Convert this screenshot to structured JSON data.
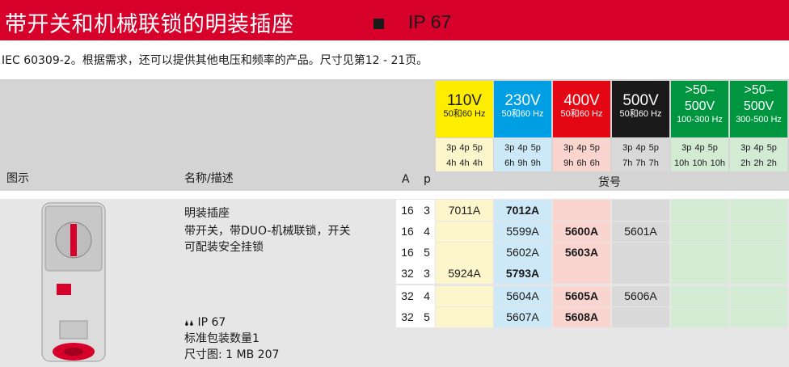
{
  "header": {
    "title": "带开关和机械联锁的明装插座",
    "ip": "IP 67"
  },
  "subtitle": "IEC 60309-2。根据需求，还可以提供其他电压和频率的产品。尺寸见第12 - 21页。",
  "columns": {
    "image": "图示",
    "name": "名称/描述",
    "a": "A",
    "p": "p",
    "order_no": "货号"
  },
  "voltages": [
    {
      "v": "110V",
      "hz": "50和60 Hz",
      "pins": [
        "3p",
        "4p",
        "5p"
      ],
      "hours": [
        "4h",
        "4h",
        "4h"
      ],
      "color": "#ffed00",
      "light": "#fdf6cc",
      "text": "#1a1a1a"
    },
    {
      "v": "230V",
      "hz": "50和60 Hz",
      "pins": [
        "3p",
        "4p",
        "5p"
      ],
      "hours": [
        "6h",
        "9h",
        "9h"
      ],
      "color": "#009fe3",
      "light": "#cde8f7",
      "text": "#ffffff"
    },
    {
      "v": "400V",
      "hz": "50和60 Hz",
      "pins": [
        "3p",
        "4p",
        "5p"
      ],
      "hours": [
        "9h",
        "6h",
        "6h"
      ],
      "color": "#e30613",
      "light": "#fad4cf",
      "text": "#ffffff"
    },
    {
      "v": "500V",
      "hz": "50和60 Hz",
      "pins": [
        "3p",
        "4p",
        "5p"
      ],
      "hours": [
        "7h",
        "7h",
        "7h"
      ],
      "color": "#1a1a1a",
      "light": "#d9d9d9",
      "text": "#ffffff"
    },
    {
      "v": ">50–500V",
      "hz": "100-300 Hz",
      "pins": [
        "3p",
        "4p",
        "5p"
      ],
      "hours": [
        "10h",
        "10h",
        "10h"
      ],
      "color": "#00963f",
      "light": "#d3ead3",
      "text": "#ffffff"
    },
    {
      "v": ">50–500V",
      "hz": "300-500 Hz",
      "pins": [
        "3p",
        "4p",
        "5p"
      ],
      "hours": [
        "2h",
        "2h",
        "2h"
      ],
      "color": "#00963f",
      "light": "#d3ead3",
      "text": "#ffffff"
    }
  ],
  "product": {
    "name": "明装插座",
    "desc1": "带开关，带DUO-机械联锁，开关",
    "desc2": "可配装安全挂锁",
    "ip": "IP 67",
    "pack": "标准包装数量1",
    "dim": "尺寸图: 1 MB 207",
    "drops": "🌢🌢"
  },
  "rows": [
    {
      "a": "16",
      "p": "3",
      "c": [
        "7011A",
        "7012A",
        "",
        "",
        "",
        ""
      ]
    },
    {
      "a": "16",
      "p": "4",
      "c": [
        "",
        "5599A",
        "5600A",
        "5601A",
        "",
        ""
      ]
    },
    {
      "a": "16",
      "p": "5",
      "c": [
        "",
        "5602A",
        "5603A",
        "",
        "",
        ""
      ]
    },
    {
      "a": "32",
      "p": "3",
      "c": [
        "5924A",
        "5793A",
        "",
        "",
        "",
        ""
      ]
    },
    {
      "a": "32",
      "p": "4",
      "c": [
        "",
        "5604A",
        "5605A",
        "5606A",
        "",
        ""
      ]
    },
    {
      "a": "32",
      "p": "5",
      "c": [
        "",
        "5607A",
        "5608A",
        "",
        "",
        ""
      ]
    }
  ],
  "bold": [
    [
      false,
      true,
      false,
      false,
      false,
      false
    ],
    [
      false,
      false,
      true,
      false,
      false,
      false
    ],
    [
      false,
      false,
      true,
      false,
      false,
      false
    ],
    [
      false,
      true,
      false,
      false,
      false,
      false
    ],
    [
      false,
      false,
      true,
      false,
      false,
      false
    ],
    [
      false,
      false,
      true,
      false,
      false,
      false
    ]
  ]
}
